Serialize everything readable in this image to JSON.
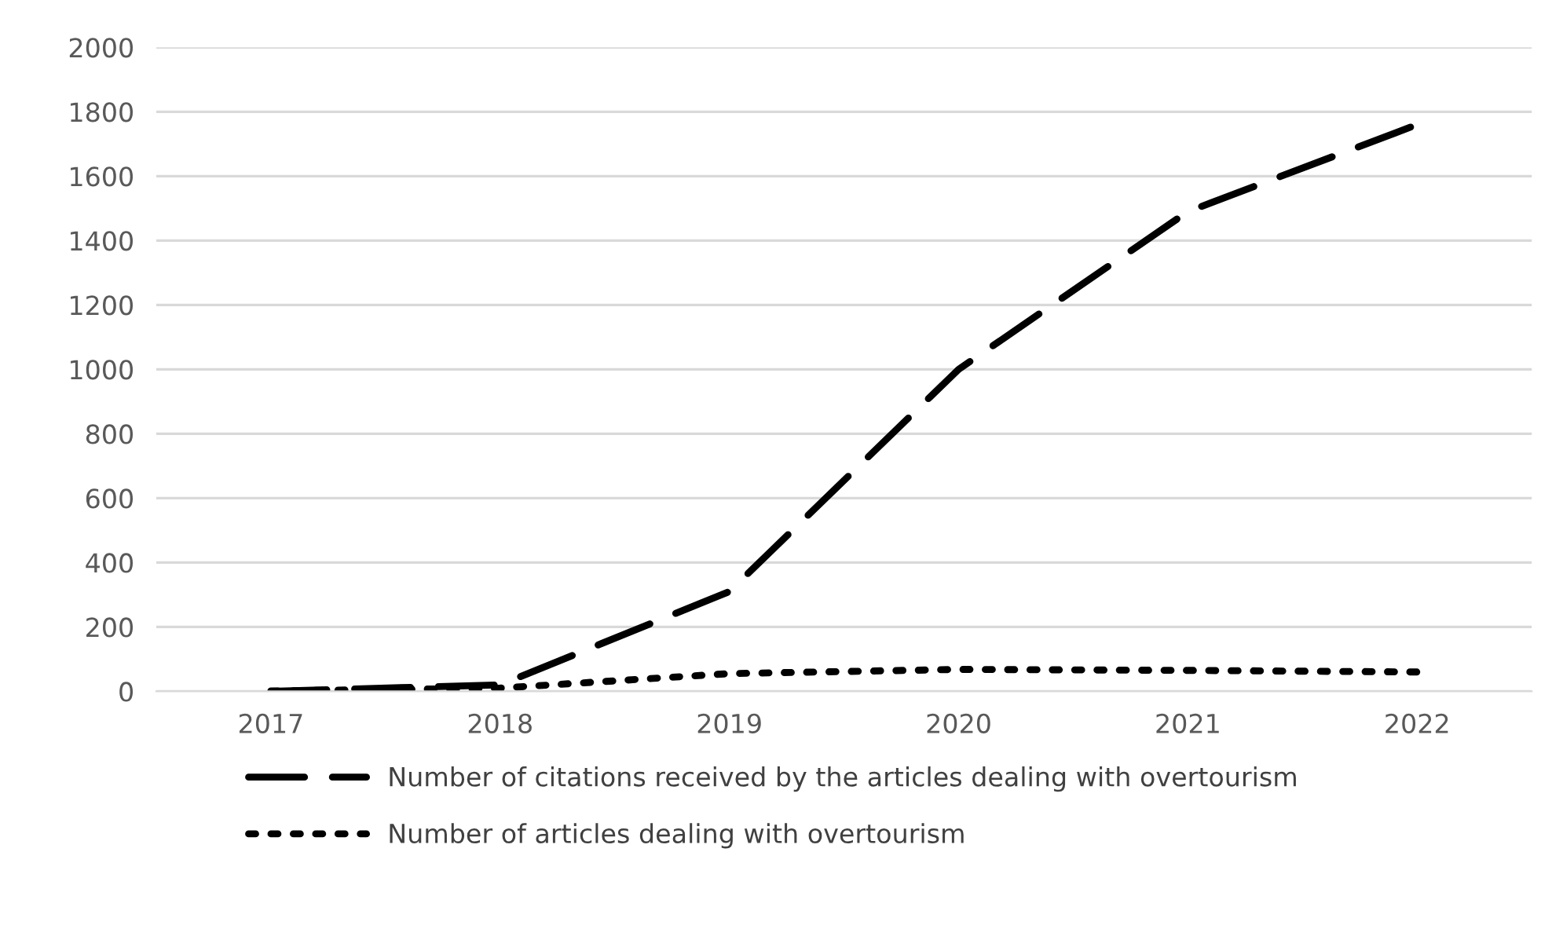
{
  "chart_data": {
    "type": "line",
    "categories": [
      "2017",
      "2018",
      "2019",
      "2020",
      "2021",
      "2022"
    ],
    "series": [
      {
        "name": "Number of citations received by the articles dealing with overtourism",
        "color": "#000000",
        "line_style": "dashed",
        "values": [
          0,
          20,
          310,
          1000,
          1490,
          1760
        ]
      },
      {
        "name": "Number of articles dealing with overtourism",
        "color": "#000000",
        "line_style": "dotted",
        "values": [
          1,
          10,
          55,
          68,
          65,
          60
        ]
      }
    ],
    "ylim": [
      0,
      2000
    ],
    "yticks": [
      0,
      200,
      400,
      600,
      800,
      1000,
      1200,
      1400,
      1600,
      1800,
      2000
    ],
    "grid": "y",
    "legend": "bottom",
    "marker": "none"
  }
}
